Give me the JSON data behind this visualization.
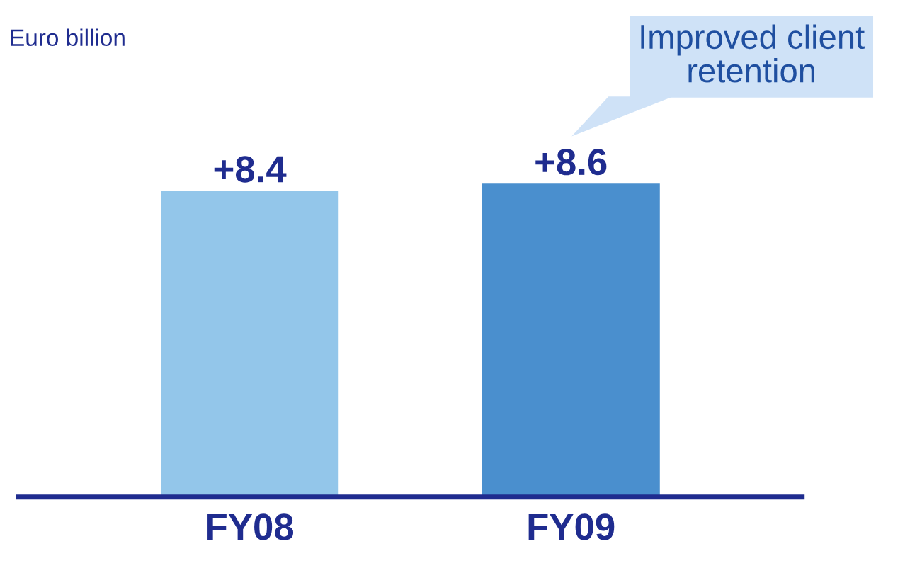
{
  "chart_data": {
    "type": "bar",
    "subtitle": "Euro billion",
    "categories": [
      "FY08",
      "FY09"
    ],
    "values": [
      8.4,
      8.6
    ],
    "colors": [
      "#93c6ea",
      "#4a8fce"
    ],
    "value_labels": [
      "+8.4",
      "+8.6"
    ],
    "annotations": [
      "Improved client\nretention"
    ]
  }
}
